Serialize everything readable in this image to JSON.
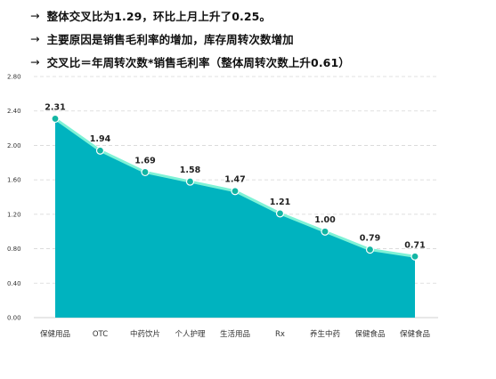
{
  "notes": [
    {
      "arrow": "→",
      "text": "整体交叉比为1.29，环比上月上升了0.25。"
    },
    {
      "arrow": "→",
      "text": "主要原因是销售毛利率的增加，库存周转次数增加"
    },
    {
      "arrow": "→",
      "text": "交叉比＝年周转次数*销售毛利率（整体周转次数上升0.61）"
    }
  ],
  "chart_data": {
    "type": "area",
    "categories": [
      "保健用品",
      "OTC",
      "中药饮片",
      "个人护理",
      "生活用品",
      "Rx",
      "养生中药",
      "保健食品",
      "保健食品"
    ],
    "values": [
      2.31,
      1.94,
      1.69,
      1.58,
      1.47,
      1.21,
      1.0,
      0.79,
      0.71
    ],
    "value_labels": [
      "2.31",
      "1.94",
      "1.69",
      "1.58",
      "1.47",
      "1.21",
      "1.00",
      "0.79",
      "0.71"
    ],
    "y_ticks": [
      "0.00",
      "0.40",
      "0.80",
      "1.20",
      "1.60",
      "2.00",
      "2.40",
      "2.80"
    ],
    "ylim": [
      0,
      2.8
    ],
    "grid": true,
    "legend": "none",
    "fill_color": "#00b3bf",
    "line_color": "#7ff2d6",
    "marker_color": "#13b6a4"
  }
}
